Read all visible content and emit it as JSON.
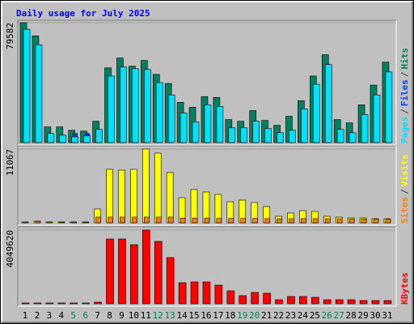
{
  "title": "Daily usage for July 2025",
  "legend_separator": "/",
  "chart_data": [
    {
      "type": "bar",
      "ylim": [
        0,
        79582
      ],
      "yticks": [
        79582
      ],
      "series": [
        {
          "name": "Hits",
          "color": "#008060",
          "values": [
            79582,
            70850,
            10360,
            10360,
            8180,
            7630,
            14170,
            49600,
            56140,
            50690,
            54500,
            45240,
            39240,
            26700,
            23440,
            30520,
            29980,
            15260,
            14170,
            21260,
            14720,
            11450,
            17440,
            27800,
            44150,
            58320,
            15260,
            13080,
            25070,
            38150,
            53410
          ]
        },
        {
          "name": "Files",
          "color": "#0040ff",
          "values": [
            3500,
            3200,
            4900,
            3000,
            6000,
            6000,
            3000,
            3200,
            3400,
            3300,
            3400,
            3100,
            3000,
            2800,
            2700,
            2900,
            2900,
            2600,
            2600,
            2700,
            2600,
            2500,
            2600,
            2800,
            3100,
            3300,
            2600,
            2500,
            2700,
            2900,
            3200
          ]
        },
        {
          "name": "Pages",
          "color": "#00e0ff",
          "values": [
            75210,
            64860,
            6000,
            4900,
            3800,
            4400,
            8720,
            44150,
            50140,
            49050,
            48500,
            39790,
            31610,
            19620,
            13630,
            25070,
            23980,
            9810,
            9810,
            14170,
            9270,
            6540,
            8180,
            22350,
            38700,
            51780,
            8720,
            6540,
            18530,
            31610,
            46870
          ]
        }
      ]
    },
    {
      "type": "bar",
      "ylim": [
        0,
        11067
      ],
      "yticks": [
        11067
      ],
      "series": [
        {
          "name": "Visits",
          "color": "#ffff00",
          "values": [
            120,
            240,
            120,
            120,
            120,
            120,
            2070,
            8030,
            7900,
            8030,
            11067,
            10460,
            7540,
            3770,
            4990,
            4620,
            4260,
            3160,
            3400,
            3040,
            2430,
            970,
            1460,
            1820,
            1700,
            970,
            850,
            730,
            730,
            610,
            610
          ]
        },
        {
          "name": "Sites",
          "color": "#ff8000",
          "values": [
            110,
            220,
            110,
            110,
            110,
            110,
            850,
            850,
            850,
            850,
            850,
            850,
            850,
            700,
            700,
            700,
            650,
            650,
            650,
            650,
            620,
            600,
            600,
            620,
            610,
            600,
            600,
            560,
            560,
            520,
            520
          ]
        }
      ]
    },
    {
      "type": "bar",
      "ylim": [
        0,
        4049620
      ],
      "yticks": [
        4049620
      ],
      "categories": [
        "1",
        "2",
        "3",
        "4",
        "5",
        "6",
        "7",
        "8",
        "9",
        "10",
        "11",
        "12",
        "13",
        "14",
        "15",
        "16",
        "17",
        "18",
        "19",
        "20",
        "21",
        "22",
        "23",
        "24",
        "25",
        "26",
        "27",
        "28",
        "29",
        "30",
        "31"
      ],
      "category_colors": [
        "#000000",
        "#000000",
        "#000000",
        "#000000",
        "#008060",
        "#008060",
        "#000000",
        "#000000",
        "#000000",
        "#000000",
        "#000000",
        "#008060",
        "#008060",
        "#000000",
        "#000000",
        "#000000",
        "#000000",
        "#000000",
        "#008060",
        "#008060",
        "#000000",
        "#000000",
        "#000000",
        "#000000",
        "#000000",
        "#008060",
        "#008060",
        "#000000",
        "#000000",
        "#000000",
        "#000000"
      ],
      "series": [
        {
          "name": "KBytes",
          "color": "#ff0000",
          "values": [
            44500,
            44500,
            44500,
            44500,
            44500,
            44500,
            89000,
            3560000,
            3560000,
            3248000,
            4049620,
            3426000,
            2536000,
            1157000,
            1201000,
            1201000,
            1023000,
            712000,
            445000,
            623000,
            578000,
            222000,
            400000,
            400000,
            356000,
            222000,
            222000,
            222000,
            178000,
            178000,
            178000
          ]
        }
      ]
    }
  ]
}
